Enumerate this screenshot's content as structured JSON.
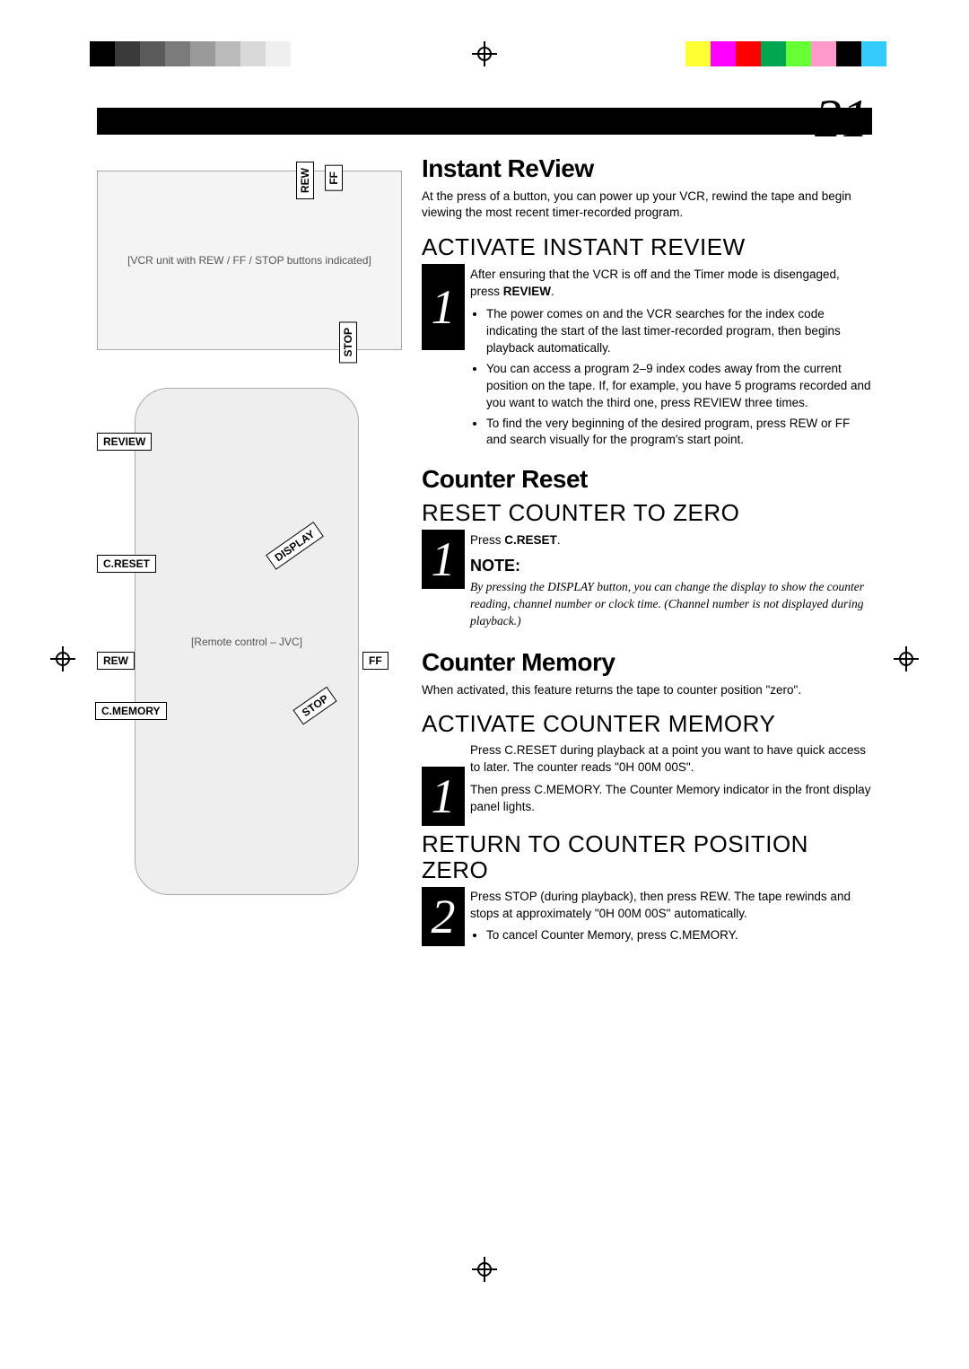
{
  "page_number": "21",
  "registration": {
    "left_colors": [
      "#000000",
      "#3a3a3a",
      "#5a5a5a",
      "#7a7a7a",
      "#9a9a9a",
      "#bababa",
      "#dadada",
      "#f0f0f0"
    ],
    "right_colors": [
      "#ffff33",
      "#ff00ff",
      "#ff0000",
      "#00a651",
      "#66ff33",
      "#ff99cc",
      "#000000",
      "#33ccff"
    ]
  },
  "illustrations": {
    "vcr_placeholder": "[VCR unit with REW / FF / STOP buttons indicated]",
    "remote_placeholder": "[Remote control – JVC]",
    "vcr_labels": {
      "rew": "REW",
      "ff": "FF",
      "stop": "STOP"
    },
    "remote_labels": {
      "review": "REVIEW",
      "creset": "C.RESET",
      "rew": "REW",
      "cmemory": "C.MEMORY",
      "ff": "FF",
      "display": "DISPLAY",
      "stop": "STOP"
    }
  },
  "sections": {
    "instant_review": {
      "title": "Instant ReView",
      "intro": "At the press of a button, you can power up your VCR, rewind the tape and begin viewing the most recent timer-recorded program.",
      "step1": {
        "num": "1",
        "head": "ACTIVATE INSTANT REVIEW",
        "lead_before": "After ensuring that the VCR is off and the Timer mode is disengaged, press ",
        "lead_bold": "REVIEW",
        "lead_after": ".",
        "bullets": [
          "The power comes on and the VCR searches for the index code indicating the start of the last timer-recorded program, then begins playback automatically.",
          "You can access a program 2–9 index codes away from the current position on the tape. If, for example, you have 5 programs recorded and you want to watch the third one, press REVIEW three times.",
          "To find the very beginning of the desired program, press REW or FF and search visually for the program's start point."
        ]
      }
    },
    "counter_reset": {
      "title": "Counter Reset",
      "step1": {
        "num": "1",
        "head": "RESET COUNTER TO ZERO",
        "press_before": "Press ",
        "press_bold": "C.RESET",
        "press_after": ".",
        "note_label": "NOTE:",
        "note_body": "By pressing the DISPLAY button, you can change the display to show the counter reading, channel number or clock time. (Channel number is not displayed during playback.)"
      }
    },
    "counter_memory": {
      "title": "Counter Memory",
      "intro": "When activated, this feature returns the tape to counter position \"zero\".",
      "step1": {
        "num": "1",
        "head": "ACTIVATE COUNTER MEMORY",
        "p1": "Press C.RESET during playback at a point you want to have quick access to later. The counter reads \"0H 00M 00S\".",
        "p2": "Then press C.MEMORY. The Counter Memory indicator in the front display panel lights."
      },
      "step2": {
        "num": "2",
        "head": "RETURN TO COUNTER POSITION ZERO",
        "p1": "Press STOP (during playback), then press REW. The tape rewinds and stops at approximately \"0H 00M 00S\" automatically.",
        "bullet": "To cancel Counter Memory, press C.MEMORY."
      }
    }
  }
}
